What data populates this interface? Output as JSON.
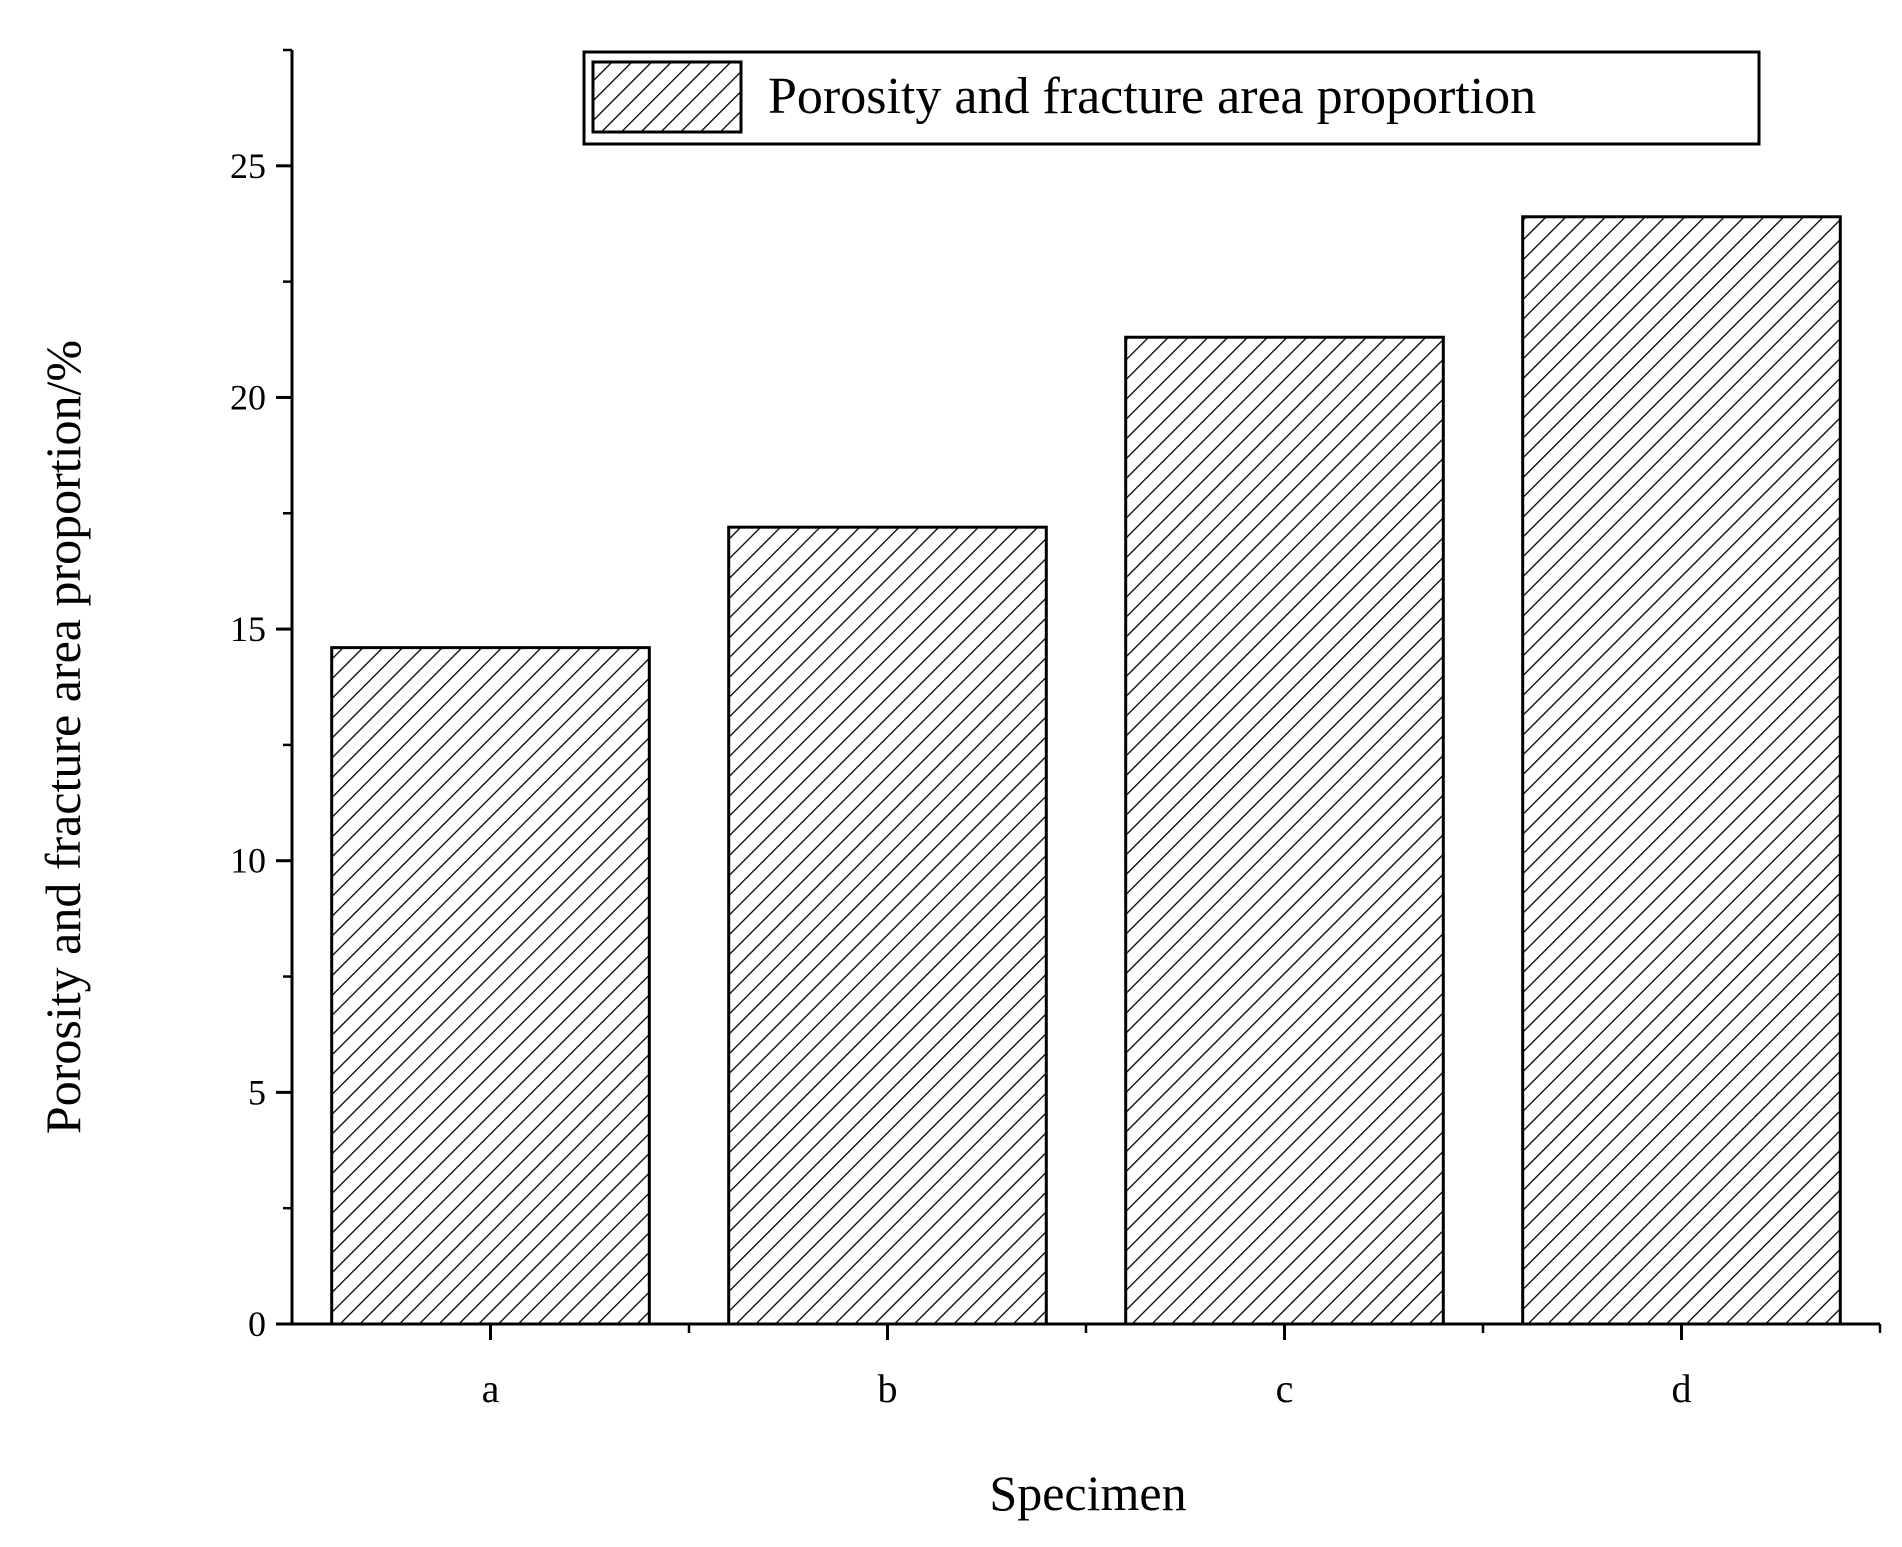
{
  "chart_data": {
    "type": "bar",
    "title": "",
    "xlabel": "Specimen",
    "ylabel": "Porosity and fracture area proportion/%",
    "categories": [
      "a",
      "b",
      "c",
      "d"
    ],
    "series": [
      {
        "name": "Porosity and fracture area proportion",
        "values": [
          14.6,
          17.2,
          21.3,
          23.9
        ],
        "pattern": "diagonal-hatch"
      }
    ],
    "ylim": [
      0,
      27.5
    ],
    "yticks": [
      0,
      5,
      10,
      15,
      20,
      25
    ],
    "y_minor_step": 2.5,
    "grid": false,
    "legend_position": "top-right",
    "colors": {
      "bar_fill": "#ffffff",
      "bar_stroke": "#000000",
      "hatch": "#000000"
    }
  }
}
